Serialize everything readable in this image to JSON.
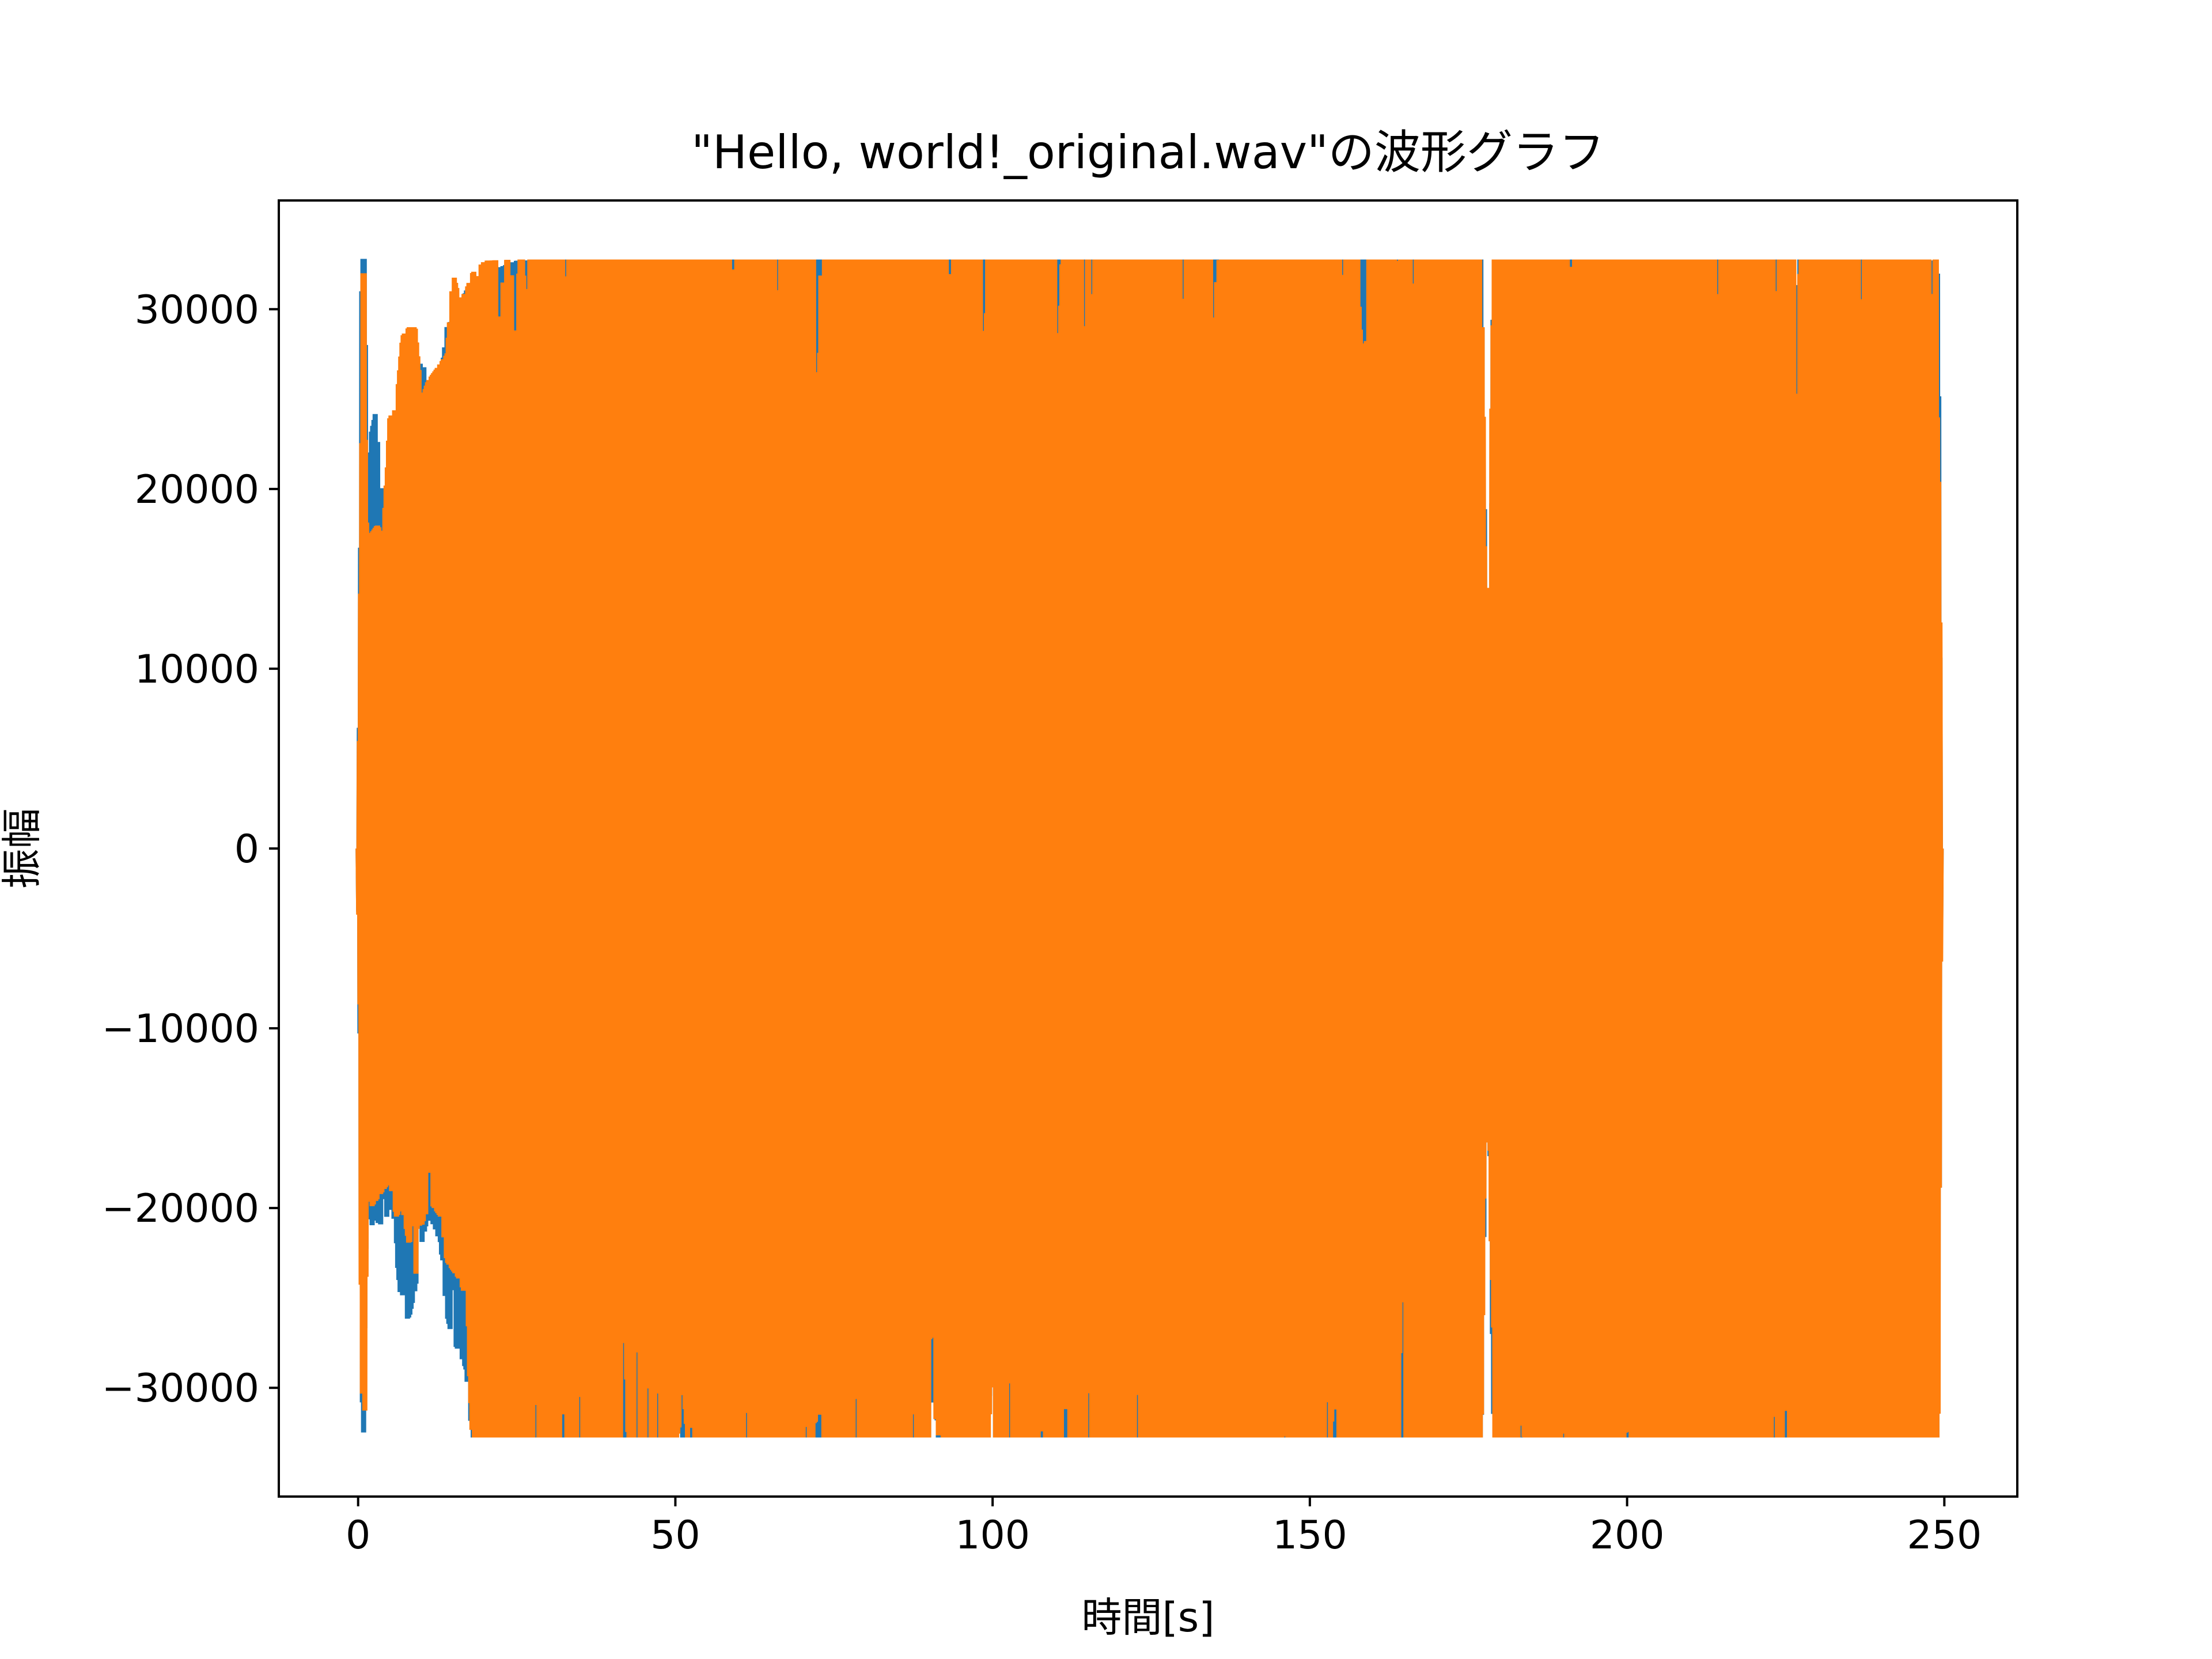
{
  "chart_data": {
    "type": "line",
    "title": "\"Hello, world!_original.wav\"の波形グラフ",
    "xlabel": "時間[s]",
    "ylabel": "振幅",
    "xlim": [
      -12.5,
      261.5
    ],
    "ylim": [
      -36050,
      36050
    ],
    "xticks": [
      0,
      50,
      100,
      150,
      200,
      250
    ],
    "xtick_labels": [
      "0",
      "50",
      "100",
      "150",
      "200",
      "250"
    ],
    "yticks": [
      -30000,
      -20000,
      -10000,
      0,
      10000,
      20000,
      30000
    ],
    "ytick_labels": [
      "−30000",
      "−20000",
      "−10000",
      "0",
      "10000",
      "20000",
      "30000"
    ],
    "grid": false,
    "legend": "none",
    "series": [
      {
        "color": "#1f77b4",
        "envelope_x": [
          0,
          0.3,
          0.6,
          1,
          1.5,
          2,
          3,
          4,
          5,
          6,
          7,
          8,
          9,
          10,
          11,
          12,
          13,
          14,
          15,
          16,
          17,
          18,
          20,
          25,
          30,
          40,
          60,
          100,
          150,
          177,
          178,
          179,
          200,
          239,
          245,
          249,
          249.5
        ],
        "envelope_max": [
          0,
          10500,
          32800,
          32800,
          17000,
          23000,
          24700,
          17500,
          20000,
          24000,
          26000,
          24500,
          25000,
          27500,
          25500,
          25500,
          26000,
          29000,
          29500,
          30000,
          31000,
          31500,
          32000,
          32700,
          32767,
          32767,
          32767,
          32767,
          32767,
          32767,
          6500,
          32767,
          32767,
          32767,
          32500,
          32767,
          0
        ],
        "envelope_min": [
          0,
          -11000,
          -32800,
          -32800,
          -20500,
          -21000,
          -20800,
          -21000,
          -20000,
          -22500,
          -26000,
          -26200,
          -24500,
          -22000,
          -20500,
          -21000,
          -22000,
          -26000,
          -27500,
          -28000,
          -29000,
          -32767,
          -32767,
          -32767,
          -32767,
          -32767,
          -32767,
          -32767,
          -32767,
          -32767,
          -7000,
          -32767,
          -32767,
          -32767,
          -32767,
          -32767,
          0
        ]
      },
      {
        "color": "#ff7f0e",
        "envelope_x": [
          0,
          0.3,
          0.6,
          1,
          1.5,
          2,
          3,
          4,
          5,
          6,
          7,
          8,
          9,
          10,
          11,
          12,
          13,
          14,
          15,
          16,
          17,
          18,
          20,
          25,
          30,
          40,
          60,
          100,
          150,
          177,
          178,
          179,
          200,
          239,
          245,
          249,
          249.5
        ],
        "envelope_max": [
          0,
          10000,
          32000,
          32000,
          17500,
          17500,
          18000,
          17500,
          24000,
          24500,
          28500,
          29000,
          29000,
          25000,
          26000,
          26500,
          27000,
          27500,
          32000,
          30500,
          31000,
          32000,
          32700,
          32767,
          32767,
          32767,
          32767,
          32767,
          32767,
          32767,
          6800,
          32767,
          32767,
          32767,
          32767,
          32767,
          0
        ],
        "envelope_min": [
          0,
          -11500,
          -32800,
          -32800,
          -19000,
          -20000,
          -19500,
          -19000,
          -18500,
          -20500,
          -20000,
          -22000,
          -24000,
          -21000,
          -20000,
          -20000,
          -20500,
          -23000,
          -23500,
          -24000,
          -25000,
          -32767,
          -32767,
          -32767,
          -32767,
          -32767,
          -32767,
          -32767,
          -32767,
          -32767,
          -6500,
          -32767,
          -32767,
          -32767,
          -32767,
          -32767,
          0
        ]
      }
    ]
  }
}
